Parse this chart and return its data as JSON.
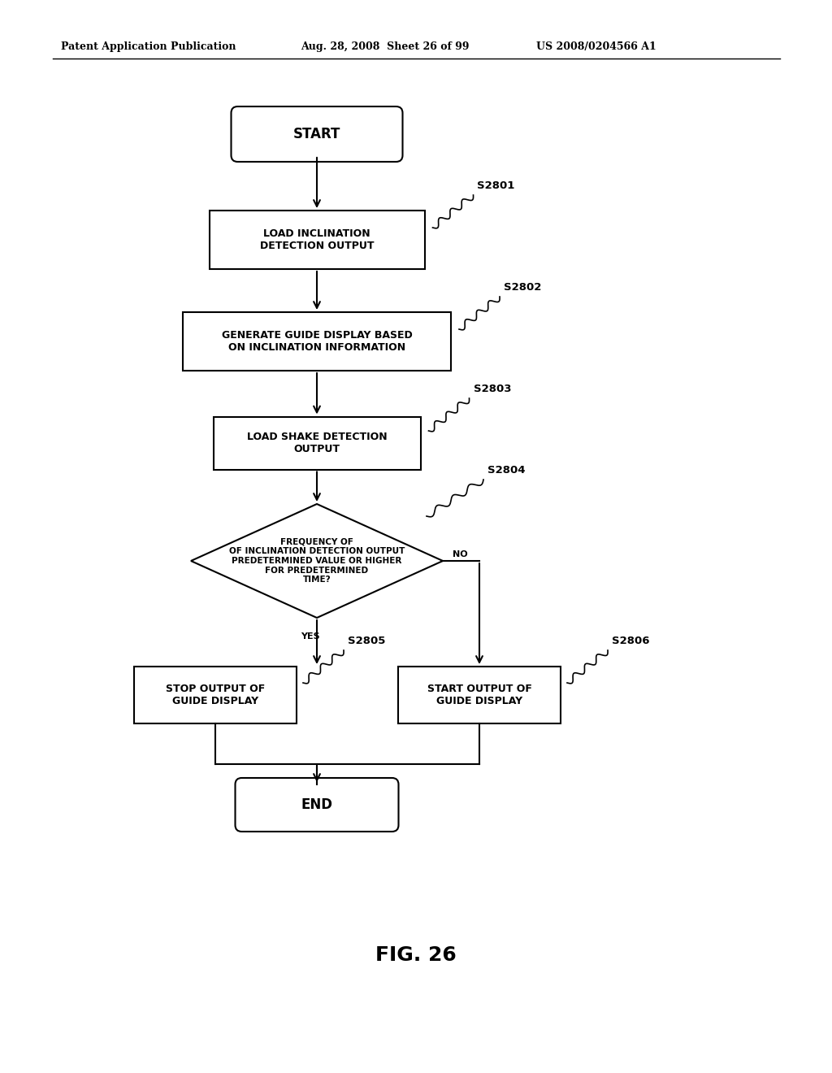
{
  "bg_color": "#ffffff",
  "header_left": "Patent Application Publication",
  "header_mid": "Aug. 28, 2008  Sheet 26 of 99",
  "header_right": "US 2008/0204566 A1",
  "fig_label": "FIG. 26",
  "start_text": "START",
  "end_text": "END",
  "s2801_text": "LOAD INCLINATION\nDETECTION OUTPUT",
  "s2802_text": "GENERATE GUIDE DISPLAY BASED\nON INCLINATION INFORMATION",
  "s2803_text": "LOAD SHAKE DETECTION\nOUTPUT",
  "s2804_text": "FREQUENCY OF\nOF INCLINATION DETECTION OUTPUT\nPREDETERMINED VALUE OR HIGHER\nFOR PREDETERMINED\nTIME?",
  "s2805_text": "STOP OUTPUT OF\nGUIDE DISPLAY",
  "s2806_text": "START OUTPUT OF\nGUIDE DISPLAY",
  "yes_text": "YES",
  "no_text": "NO",
  "label_s2801": "S2801",
  "label_s2802": "S2802",
  "label_s2803": "S2803",
  "label_s2804": "S2804",
  "label_s2805": "S2805",
  "label_s2806": "S2806"
}
